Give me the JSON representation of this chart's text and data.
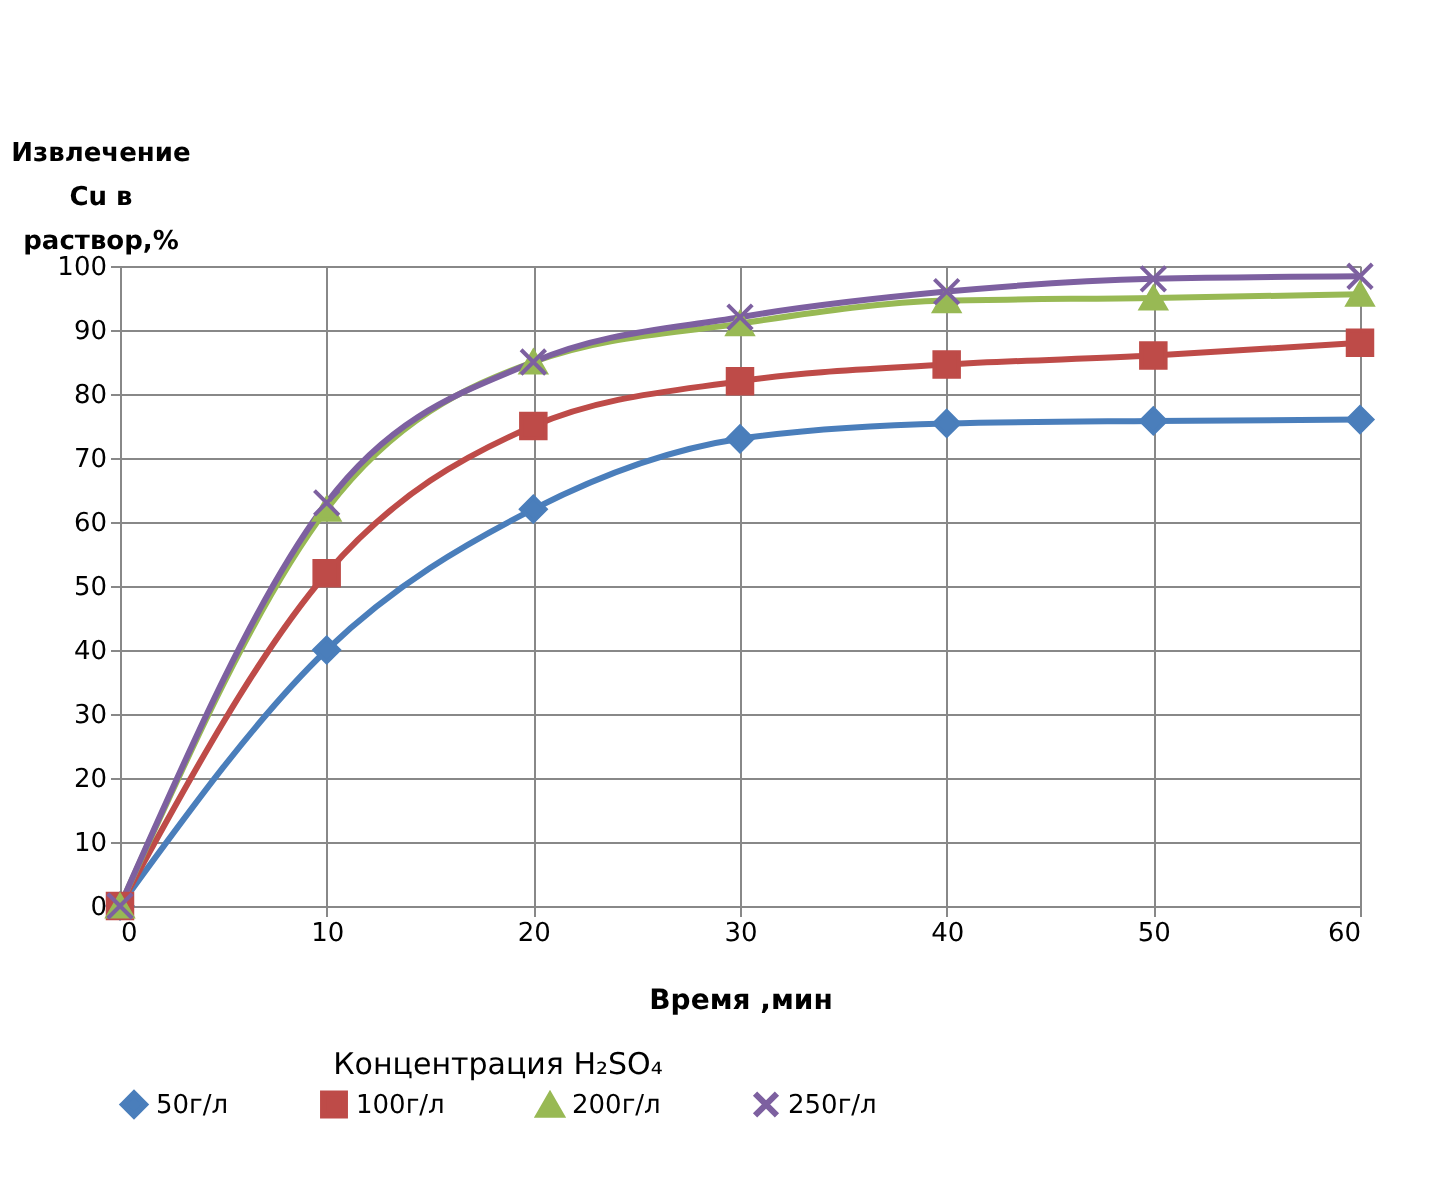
{
  "chart_data": {
    "type": "line",
    "xlabel": "Время ,мин",
    "ylabel": "Извлечение Cu в раствор,%",
    "legend_title": "Концентрация H₂SO₄",
    "x": [
      0,
      10,
      20,
      30,
      40,
      50,
      60
    ],
    "series": [
      {
        "name": "50г/л",
        "color": "#4a7ebb",
        "marker": "diamond",
        "values": [
          0,
          40,
          62,
          73,
          75.4,
          75.8,
          76
        ]
      },
      {
        "name": "100г/л",
        "color": "#be4b48",
        "marker": "square",
        "values": [
          0,
          52,
          75,
          82,
          84.6,
          86,
          88
        ]
      },
      {
        "name": "200г/л",
        "color": "#98b954",
        "marker": "triangle",
        "values": [
          0,
          62,
          85,
          91,
          94.6,
          95,
          95.6
        ]
      },
      {
        "name": "250г/л",
        "color": "#7d60a0",
        "marker": "cross",
        "values": [
          0,
          63,
          85,
          92,
          96,
          98,
          98.4
        ]
      }
    ],
    "xlim": [
      0,
      60
    ],
    "xticks": [
      0,
      10,
      20,
      30,
      40,
      50,
      60
    ],
    "ylim": [
      0,
      100
    ],
    "yticks": [
      0,
      10,
      20,
      30,
      40,
      50,
      60,
      70,
      80,
      90,
      100
    ],
    "grid": true,
    "legend": "bottom",
    "line_style": "solid"
  }
}
